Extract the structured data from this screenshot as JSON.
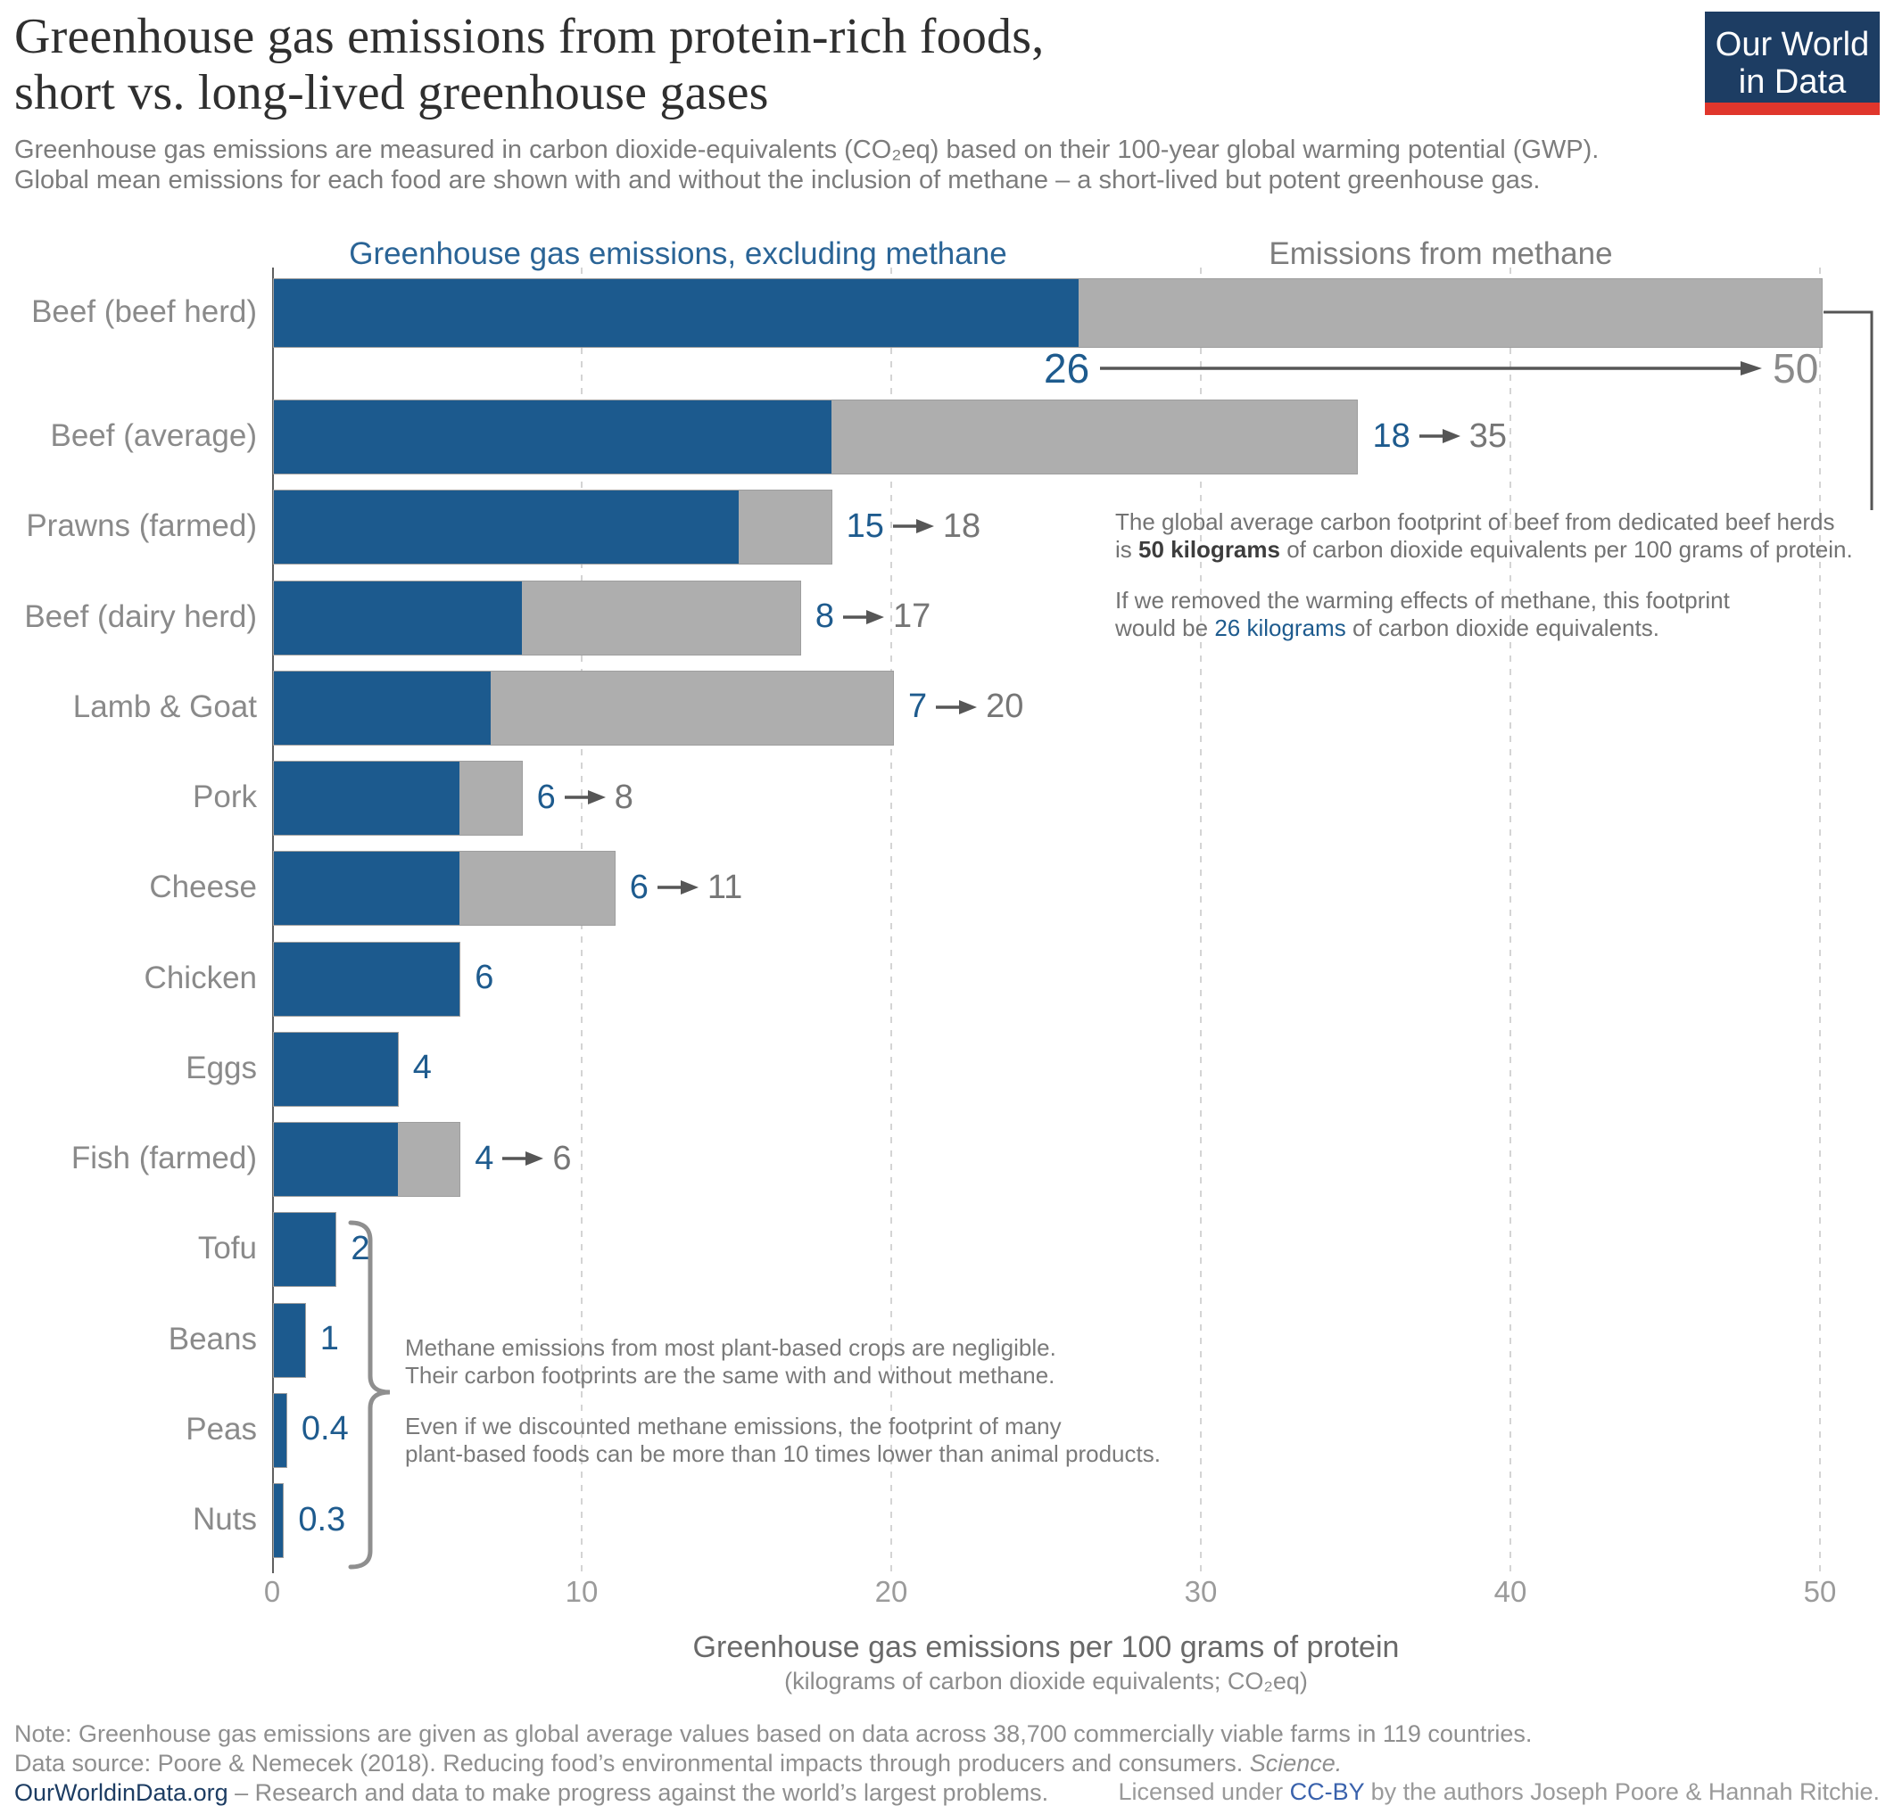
{
  "header": {
    "title_line1": "Greenhouse gas emissions from protein-rich foods,",
    "title_line2": "short vs. long-lived greenhouse gases",
    "subtitle_line1": "Greenhouse gas emissions are measured in carbon dioxide-equivalents (CO₂eq) based on their 100-year global warming potential (GWP).",
    "subtitle_line2": "Global mean emissions for each food are shown with and without the inclusion of methane – a short-lived but potent greenhouse gas."
  },
  "logo": {
    "line1": "Our World",
    "line2": "in Data"
  },
  "legend": {
    "excluding": "Greenhouse gas emissions, excluding methane",
    "methane": "Emissions from methane"
  },
  "chart_data": {
    "type": "bar",
    "stacked": true,
    "orientation": "horizontal",
    "categories": [
      "Beef (beef herd)",
      "Beef (average)",
      "Prawns (farmed)",
      "Beef (dairy herd)",
      "Lamb & Goat",
      "Pork",
      "Cheese",
      "Chicken",
      "Eggs",
      "Fish (farmed)",
      "Tofu",
      "Beans",
      "Peas",
      "Nuts"
    ],
    "series": [
      {
        "name": "Greenhouse gas emissions, excluding methane",
        "color": "#1c5a8e",
        "values": [
          26,
          18,
          15,
          8,
          7,
          6,
          6,
          6,
          4,
          4,
          2,
          1,
          0.4,
          0.3
        ]
      },
      {
        "name": "Emissions from methane (additional)",
        "color": "#aeaeae",
        "values": [
          24,
          17,
          3,
          9,
          13,
          2,
          5,
          0,
          0,
          2,
          0,
          0,
          0,
          0
        ]
      }
    ],
    "totals_including_methane": [
      50,
      35,
      18,
      17,
      20,
      8,
      11,
      6,
      4,
      6,
      2,
      1,
      0.4,
      0.3
    ],
    "xlabel": "Greenhouse gas emissions per 100 grams of protein",
    "xlabel_sub": "(kilograms of carbon dioxide equivalents; CO₂eq)",
    "xlim": [
      0,
      50
    ],
    "xticks": [
      0,
      10,
      20,
      30,
      40,
      50
    ],
    "grid": "vertical-dashed"
  },
  "beef_note": {
    "p1": [
      [
        {
          "t": "The global average carbon footprint of beef from dedicated beef herds"
        }
      ],
      [
        {
          "t": "is "
        },
        {
          "t": "50 kilograms",
          "s": "bold"
        },
        {
          "t": " of carbon dioxide equivalents per 100 grams of protein."
        }
      ]
    ],
    "p2": [
      [
        {
          "t": "If we removed the warming effects of methane, this footprint"
        }
      ],
      [
        {
          "t": "would be "
        },
        {
          "t": "26 kilograms",
          "s": "blue"
        },
        {
          "t": " of carbon dioxide equivalents."
        }
      ]
    ]
  },
  "plant_note": {
    "p1": [
      "Methane emissions from most plant-based crops are negligible.",
      "Their carbon footprints are the same with and without methane."
    ],
    "p2": [
      "Even if we discounted methane emissions, the footprint of many",
      "plant-based foods can be more than 10 times lower than animal products."
    ]
  },
  "axis": {
    "title": "Greenhouse gas emissions per 100 grams of protein",
    "subtitle": "(kilograms of carbon dioxide equivalents; CO₂eq)"
  },
  "footer": {
    "note": "Note: Greenhouse gas emissions are given as global average values based on data across 38,700 commercially viable farms in 119 countries.",
    "datasource": [
      {
        "t": "Data source: Poore & Nemecek (2018). Reducing food’s environmental impacts through producers and consumers. "
      },
      {
        "t": "Science.",
        "s": "italic"
      }
    ],
    "owid": [
      {
        "t": "OurWorldinData.org",
        "s": "navy"
      },
      {
        "t": " – Research and data to make progress against the world’s largest problems."
      }
    ],
    "license": [
      {
        "t": "Licensed under "
      },
      {
        "t": "CC-BY",
        "s": "link"
      },
      {
        "t": " by the authors Joseph Poore & Hannah Ritchie."
      }
    ]
  },
  "colors": {
    "bar_blue": "#1c5a8e",
    "bar_gray": "#aeaeae",
    "accent_blue": "#1e5b8e",
    "navy": "#1d3d63",
    "logo_red": "#e0362c",
    "arrow_gray": "#565656"
  }
}
